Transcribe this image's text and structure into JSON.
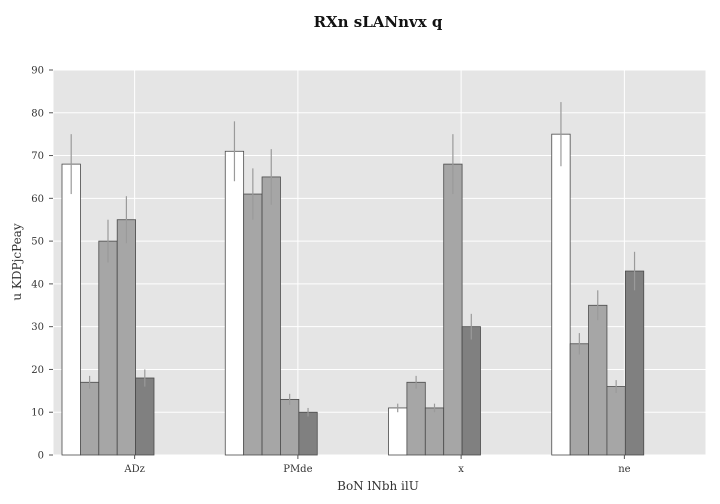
{
  "chart_data": {
    "type": "bar",
    "title": "RXn sLANnvx q",
    "xlabel": "BoN lNbh ilU",
    "ylabel": "u KDPjcPeay",
    "categories": [
      "ADz",
      "PMde",
      "x",
      "ne"
    ],
    "ylim": [
      0,
      90
    ],
    "yticks": [
      0,
      10,
      20,
      30,
      40,
      50,
      60,
      70,
      80,
      90
    ],
    "grid": true,
    "background": "#e5e5e5",
    "series": [
      {
        "color": "#ffffff",
        "values": [
          68,
          71,
          11,
          75
        ],
        "errors": [
          7,
          7,
          1,
          7.5
        ]
      },
      {
        "color": "#a6a6a6",
        "values": [
          17,
          61,
          17,
          26
        ],
        "errors": [
          1.5,
          6,
          1.5,
          2.5
        ]
      },
      {
        "color": "#a6a6a6",
        "values": [
          50,
          65,
          11,
          35
        ],
        "errors": [
          5,
          6.5,
          1,
          3.5
        ]
      },
      {
        "color": "#a6a6a6",
        "values": [
          55,
          13,
          68,
          16
        ],
        "errors": [
          5.5,
          1.3,
          7,
          1.5
        ]
      },
      {
        "color": "#808080",
        "values": [
          18,
          10,
          30,
          43
        ],
        "errors": [
          2,
          1,
          3,
          4.5
        ]
      }
    ]
  }
}
